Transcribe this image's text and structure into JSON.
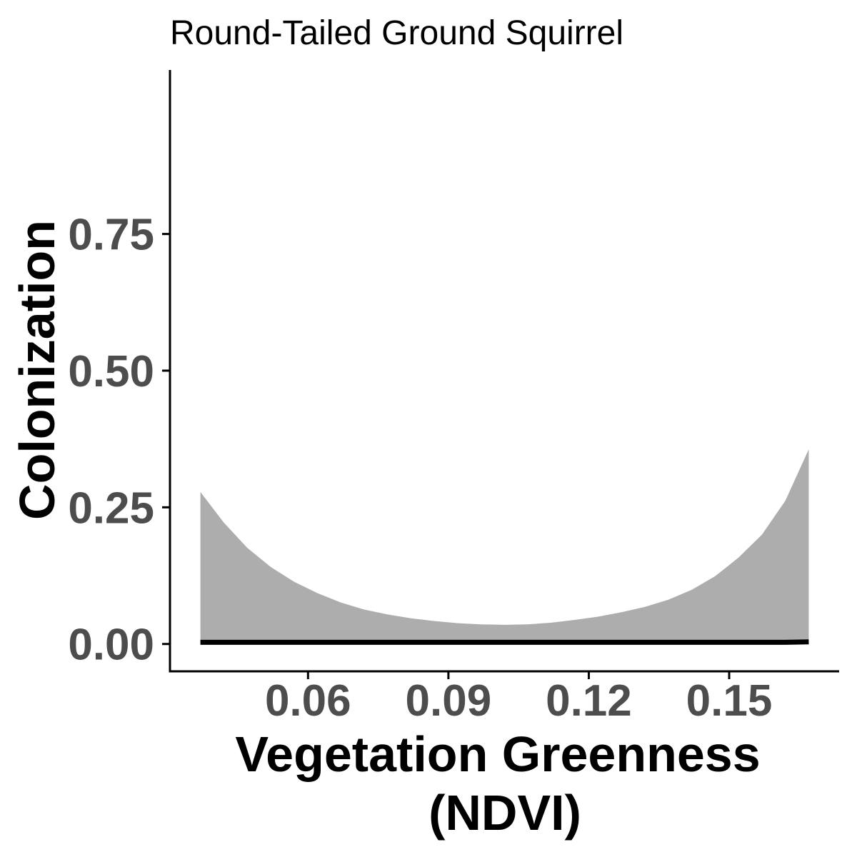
{
  "chart_data": {
    "type": "area",
    "title": "Round-Tailed Ground Squirrel",
    "xlabel_lines": [
      "Vegetation Greenness",
      "(NDVI)"
    ],
    "ylabel": "Colonization",
    "xlim": [
      0.0305,
      0.1735
    ],
    "ylim": [
      -0.05,
      1.05
    ],
    "x_ticks": [
      0.06,
      0.09,
      0.12,
      0.15
    ],
    "x_tick_labels": [
      "0.06",
      "0.09",
      "0.12",
      "0.15"
    ],
    "y_ticks": [
      0.0,
      0.25,
      0.5,
      0.75
    ],
    "y_tick_labels": [
      "0.00",
      "0.25",
      "0.50",
      "0.75"
    ],
    "grid": false,
    "colors": {
      "ribbon": "#adadad",
      "line": "#000000",
      "axis": "#000000",
      "tick_label": "#4d4d4d"
    },
    "x": [
      0.037,
      0.042,
      0.047,
      0.052,
      0.057,
      0.062,
      0.067,
      0.072,
      0.077,
      0.082,
      0.087,
      0.092,
      0.097,
      0.102,
      0.107,
      0.112,
      0.117,
      0.122,
      0.127,
      0.132,
      0.137,
      0.142,
      0.147,
      0.152,
      0.157,
      0.162,
      0.167
    ],
    "series": [
      {
        "role": "estimate",
        "values": [
          0.003,
          0.003,
          0.003,
          0.003,
          0.003,
          0.003,
          0.003,
          0.003,
          0.003,
          0.003,
          0.003,
          0.003,
          0.003,
          0.003,
          0.003,
          0.003,
          0.003,
          0.003,
          0.003,
          0.003,
          0.003,
          0.003,
          0.003,
          0.003,
          0.003,
          0.003,
          0.004
        ]
      },
      {
        "role": "lower",
        "values": [
          0,
          0,
          0,
          0,
          0,
          0,
          0,
          0,
          0,
          0,
          0,
          0,
          0,
          0,
          0,
          0,
          0,
          0,
          0,
          0,
          0,
          0,
          0,
          0,
          0,
          0,
          0
        ]
      },
      {
        "role": "upper",
        "values": [
          0.278,
          0.222,
          0.176,
          0.141,
          0.114,
          0.093,
          0.076,
          0.063,
          0.054,
          0.047,
          0.042,
          0.038,
          0.036,
          0.035,
          0.036,
          0.039,
          0.044,
          0.05,
          0.058,
          0.068,
          0.081,
          0.099,
          0.124,
          0.158,
          0.2,
          0.262,
          0.356
        ]
      }
    ]
  }
}
